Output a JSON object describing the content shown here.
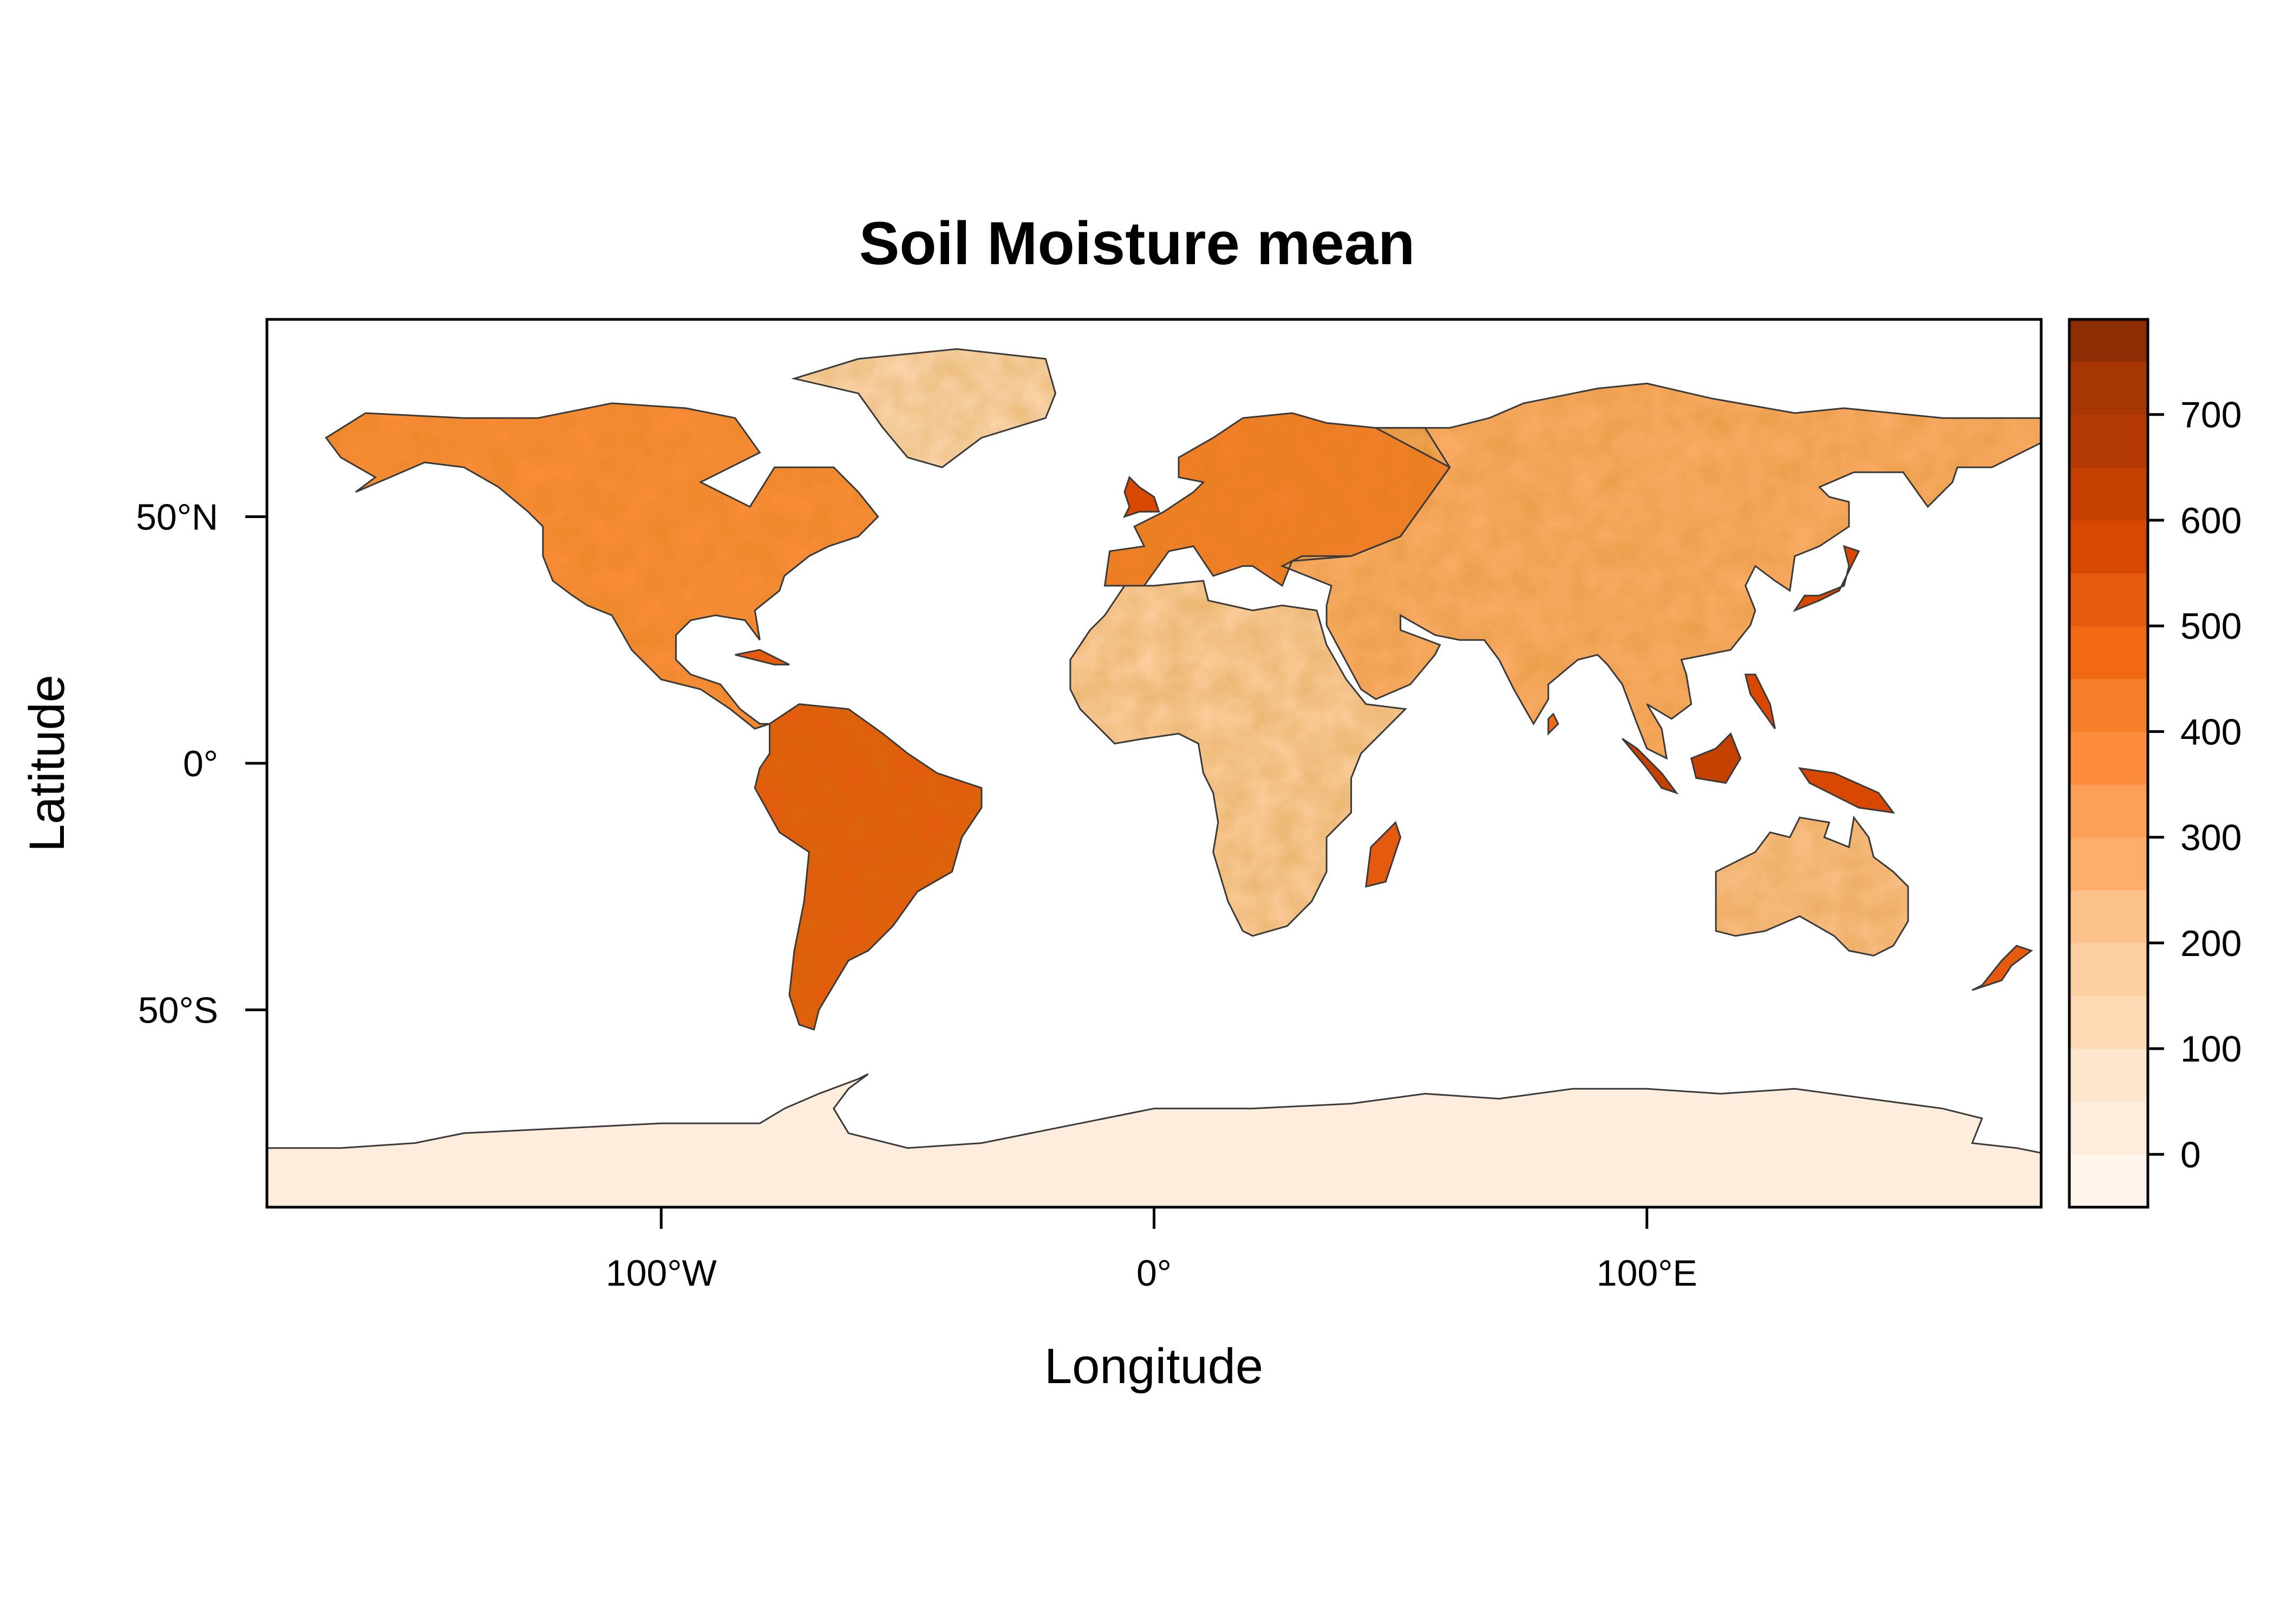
{
  "title": "Soil Moisture mean",
  "map": {
    "x_axis": {
      "label": "Longitude",
      "ticks": [
        {
          "value": -100,
          "label": "100°W"
        },
        {
          "value": 0,
          "label": "0°"
        },
        {
          "value": 100,
          "label": "100°E"
        }
      ],
      "range": [
        -180,
        180
      ]
    },
    "y_axis": {
      "label": "Latitude",
      "ticks": [
        {
          "value": 50,
          "label": "50°N"
        },
        {
          "value": 0,
          "label": "0°"
        },
        {
          "value": -50,
          "label": "50°S"
        }
      ],
      "range": [
        -90,
        90
      ]
    },
    "colorbar": {
      "range": [
        -50,
        790
      ],
      "ticks": [
        {
          "value": 0,
          "label": "0"
        },
        {
          "value": 100,
          "label": "100"
        },
        {
          "value": 200,
          "label": "200"
        },
        {
          "value": 300,
          "label": "300"
        },
        {
          "value": 400,
          "label": "400"
        },
        {
          "value": 500,
          "label": "500"
        },
        {
          "value": 600,
          "label": "600"
        },
        {
          "value": 700,
          "label": "700"
        }
      ],
      "colors": [
        "#fff5eb",
        "#feeddc",
        "#fee6ce",
        "#fdd9b4",
        "#fdd0a2",
        "#fdc28c",
        "#fdae6b",
        "#fd9f56",
        "#fd8d3c",
        "#f67f2c",
        "#f16913",
        "#e45a0e",
        "#d94801",
        "#c54102",
        "#b33a03",
        "#a63603",
        "#8c2d04",
        "#7f2704"
      ],
      "boundaries": [
        -50,
        0,
        50,
        100,
        150,
        200,
        250,
        300,
        350,
        400,
        450,
        500,
        550,
        600,
        650,
        700,
        750,
        790
      ]
    },
    "colors": {
      "coastline": "#3a3a3a",
      "ocean": "#ffffff",
      "frame": "#000000"
    },
    "regions": [
      {
        "name": "north-america",
        "level": 380
      },
      {
        "name": "south-america",
        "level": 500
      },
      {
        "name": "europe",
        "level": 400
      },
      {
        "name": "africa",
        "level": 150
      },
      {
        "name": "asia",
        "level": 250
      },
      {
        "name": "australia",
        "level": 200
      },
      {
        "name": "antarctica",
        "level": 0
      },
      {
        "name": "greenland",
        "level": 100
      }
    ]
  }
}
